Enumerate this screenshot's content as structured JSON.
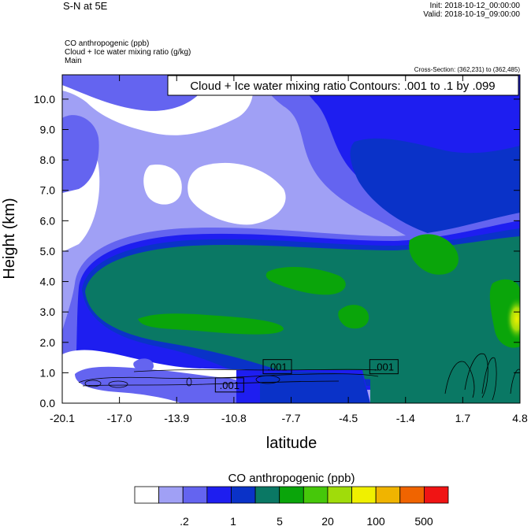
{
  "header": {
    "left_title": "S-N at 5E",
    "init": "Init: 2018-10-12_00:00:00",
    "valid": "Valid: 2018-10-19_09:00:00",
    "fields": [
      "CO anthropogenic   (ppb)",
      "Cloud + Ice water mixing ratio   (g/kg)",
      "Main"
    ],
    "cross_section": "Cross-Section: (362,231) to (362,485)"
  },
  "chart_data": {
    "type": "heatmap",
    "title": "Cloud + Ice water mixing ratio Contours: .001 to .1 by .099",
    "xlabel": "latitude",
    "ylabel": "Height (km)",
    "xlim": [
      -20.1,
      4.8
    ],
    "ylim": [
      0.0,
      10.8
    ],
    "x_ticks": [
      "-20.1",
      "-17.0",
      "-13.9",
      "-10.8",
      "-7.7",
      "-4.5",
      "-1.4",
      "1.7",
      "4.8"
    ],
    "y_ticks": [
      "0.0",
      "1.0",
      "2.0",
      "3.0",
      "4.0",
      "5.0",
      "6.0",
      "7.0",
      "8.0",
      "9.0",
      "10.0"
    ],
    "contour_labels": [
      {
        "text": ".001",
        "lat": -8.4,
        "height": 1.2
      },
      {
        "text": ".001",
        "lat": -2.6,
        "height": 1.2
      },
      {
        "text": ".001",
        "lat": -11.0,
        "height": 0.6
      }
    ],
    "colorbar": {
      "title": "CO anthropogenic  (ppb)",
      "colors": [
        "#ffffff",
        "#a0a0f5",
        "#6464f0",
        "#1e1ef0",
        "#0a32c8",
        "#0a7864",
        "#0aa50a",
        "#46c80a",
        "#a0dc0a",
        "#f0f000",
        "#f0b400",
        "#f06400",
        "#f01414"
      ],
      "labels": [
        ".2",
        "1",
        "5",
        "20",
        "100",
        "500"
      ]
    }
  }
}
